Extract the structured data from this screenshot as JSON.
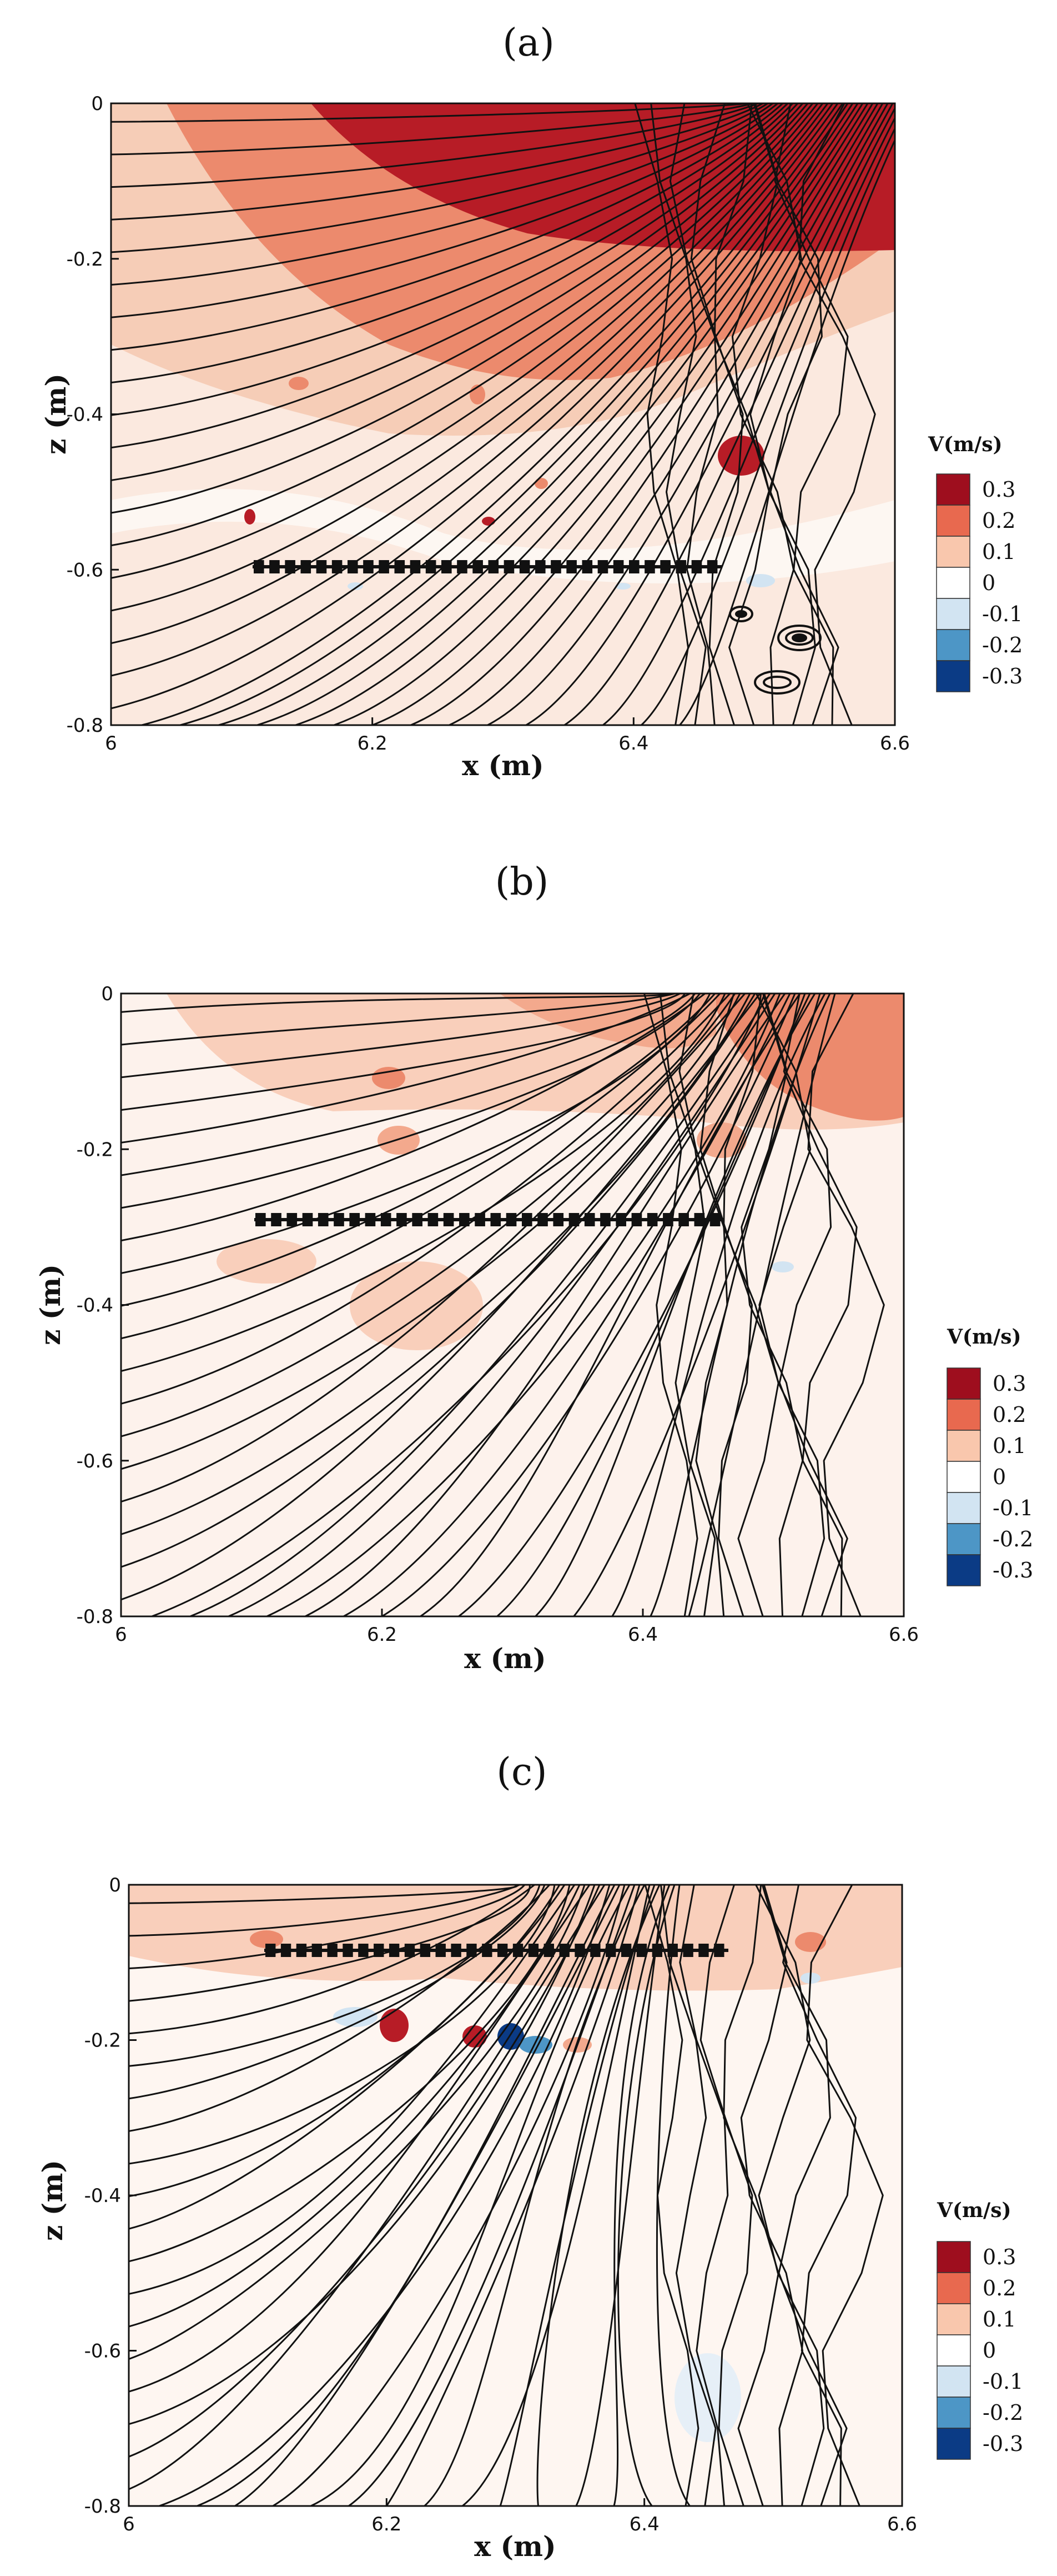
{
  "chart_data": [
    {
      "panel": "(a)",
      "type": "heatmap",
      "xlabel": "x (m)",
      "ylabel": "z (m)",
      "xlim": [
        6,
        6.6
      ],
      "ylim": [
        -0.8,
        0
      ],
      "xticks": [
        "6",
        "6.2",
        "6.4",
        "6.6"
      ],
      "yticks": [
        "0",
        "-0.2",
        "-0.4",
        "-0.6",
        "-0.8"
      ],
      "colorbar": {
        "title": "V(m/s)",
        "levels": [
          "0.3",
          "0.2",
          "0.1",
          "0",
          "-0.1",
          "-0.2",
          "-0.3"
        ],
        "colors": [
          "#9e0e1e",
          "#e8694f",
          "#f9c7ad",
          "#ffffff",
          "#d2e4f2",
          "#4d96c6",
          "#0b3b85"
        ]
      },
      "structure": {
        "z": -0.595,
        "x_start": 6.1,
        "x_end": 6.46,
        "segments": 30
      }
    },
    {
      "panel": "(b)",
      "type": "heatmap",
      "xlabel": "x (m)",
      "ylabel": "z (m)",
      "xlim": [
        6,
        6.6
      ],
      "ylim": [
        -0.8,
        0
      ],
      "xticks": [
        "6",
        "6.2",
        "6.4",
        "6.6"
      ],
      "yticks": [
        "0",
        "-0.2",
        "-0.4",
        "-0.6",
        "-0.8"
      ],
      "colorbar": {
        "title": "V(m/s)",
        "levels": [
          "0.3",
          "0.2",
          "0.1",
          "0",
          "-0.1",
          "-0.2",
          "-0.3"
        ],
        "colors": [
          "#9e0e1e",
          "#e8694f",
          "#f9c7ad",
          "#ffffff",
          "#d2e4f2",
          "#4d96c6",
          "#0b3b85"
        ]
      },
      "structure": {
        "z": -0.295,
        "x_start": 6.1,
        "x_end": 6.46,
        "segments": 30
      }
    },
    {
      "panel": "(c)",
      "type": "heatmap",
      "xlabel": "x (m)",
      "ylabel": "z (m)",
      "xlim": [
        6,
        6.6
      ],
      "ylim": [
        -0.8,
        0
      ],
      "xticks": [
        "6",
        "6.2",
        "6.4",
        "6.6"
      ],
      "yticks": [
        "0",
        "-0.2",
        "-0.4",
        "-0.6",
        "-0.8"
      ],
      "colorbar": {
        "title": "V(m/s)",
        "levels": [
          "0.3",
          "0.2",
          "0.1",
          "0",
          "-0.1",
          "-0.2",
          "-0.3"
        ],
        "colors": [
          "#9e0e1e",
          "#e8694f",
          "#f9c7ad",
          "#ffffff",
          "#d2e4f2",
          "#4d96c6",
          "#0b3b85"
        ]
      },
      "structure": {
        "z": -0.1,
        "x_start": 6.1,
        "x_end": 6.46,
        "segments": 30
      }
    }
  ]
}
